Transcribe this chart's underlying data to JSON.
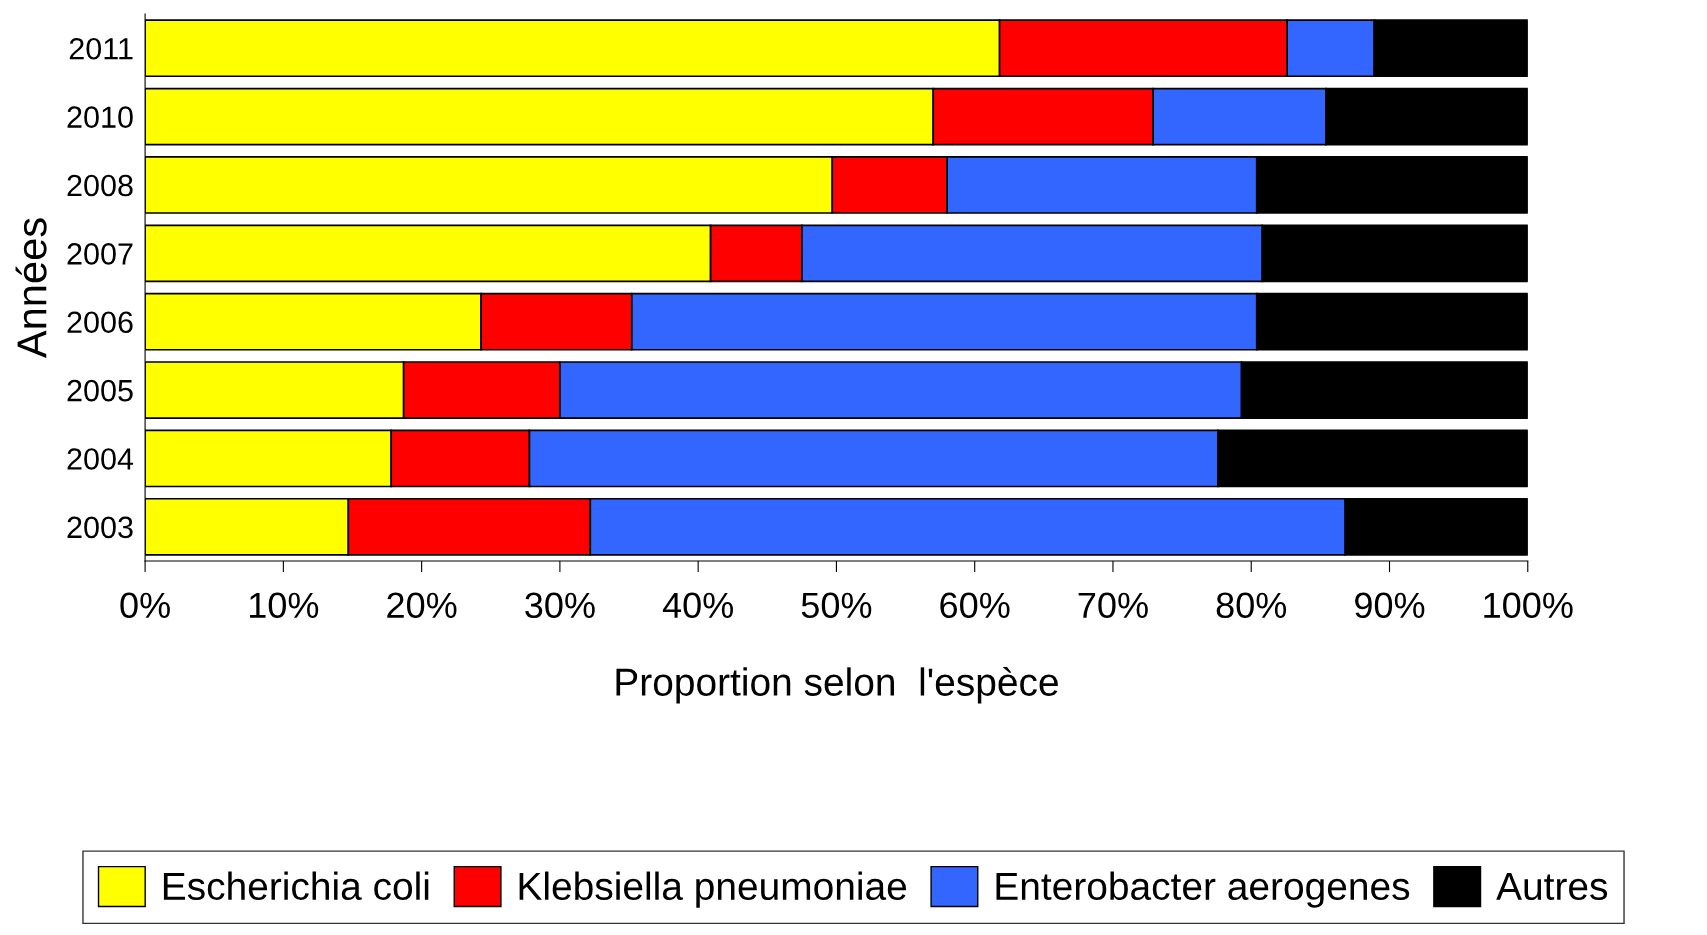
{
  "chart_data": {
    "type": "bar",
    "orientation": "horizontal",
    "stacked": true,
    "xlabel": "Proportion selon  l'espèce",
    "ylabel": "Années",
    "categories": [
      "2011",
      "2010",
      "2008",
      "2007",
      "2006",
      "2005",
      "2004",
      "2003"
    ],
    "series": [
      {
        "name": "Escherichia coli",
        "color": "#ffff00",
        "values": [
          61.8,
          57.0,
          49.7,
          40.9,
          24.3,
          18.7,
          17.8,
          14.7
        ]
      },
      {
        "name": "Klebsiella pneumoniae",
        "color": "#ff0000",
        "values": [
          20.8,
          15.9,
          8.3,
          6.6,
          10.9,
          11.3,
          10.0,
          17.5
        ]
      },
      {
        "name": "Enterobacter aerogenes",
        "color": "#3366ff",
        "values": [
          6.3,
          12.5,
          22.4,
          33.3,
          45.2,
          49.3,
          49.8,
          54.6
        ]
      },
      {
        "name": "Autres",
        "color": "#000000",
        "values": [
          11.1,
          14.6,
          19.6,
          19.2,
          19.6,
          20.7,
          22.4,
          13.2
        ]
      }
    ],
    "xlim": [
      0,
      100
    ],
    "xticks": [
      {
        "value": 0,
        "label": "0%"
      },
      {
        "value": 10,
        "label": "10%"
      },
      {
        "value": 20,
        "label": "20%"
      },
      {
        "value": 30,
        "label": "30%"
      },
      {
        "value": 40,
        "label": "40%"
      },
      {
        "value": 50,
        "label": "50%"
      },
      {
        "value": 60,
        "label": "60%"
      },
      {
        "value": 70,
        "label": "70%"
      },
      {
        "value": 80,
        "label": "80%"
      },
      {
        "value": 90,
        "label": "90%"
      },
      {
        "value": 100,
        "label": "100%"
      }
    ],
    "grid": false,
    "legend": "bottom"
  }
}
